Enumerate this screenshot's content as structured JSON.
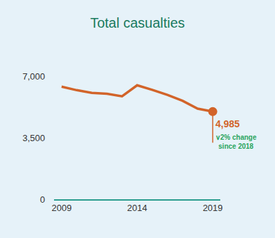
{
  "chart_data": {
    "type": "line",
    "title": "Total casualties",
    "x": [
      2009,
      2010,
      2011,
      2012,
      2013,
      2014,
      2015,
      2016,
      2017,
      2018,
      2019
    ],
    "values": [
      6400,
      6200,
      6050,
      6000,
      5850,
      6480,
      6220,
      5930,
      5600,
      5150,
      4985
    ],
    "color": "#d2642a",
    "marker": "last",
    "xlim": [
      2008.5,
      2019.5
    ],
    "xticks": [
      2009,
      2014,
      2019
    ],
    "ylim": [
      0,
      7000
    ],
    "yticks": [
      0,
      {
        "value": 3500,
        "label": "3,500"
      },
      {
        "value": 7000,
        "label": "7,000"
      }
    ],
    "grid": false,
    "annotations": [
      {
        "text": [
          "4,985"
        ],
        "color": "#d2642a"
      },
      {
        "text": [
          "∨2% change",
          "since 2018"
        ],
        "color": "#2aa55e"
      }
    ]
  }
}
